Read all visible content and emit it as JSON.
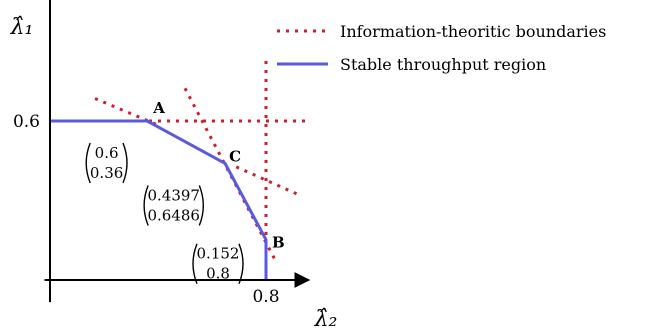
{
  "chart_data": {
    "type": "line",
    "xlabel": "λ̂₂",
    "ylabel": "λ̂₁",
    "xlim": [
      -0.0204,
      0.9524
    ],
    "ylim": [
      -0.0833,
      1.15
    ],
    "x_ticks": [
      {
        "value": 0.8,
        "label": "0.8"
      }
    ],
    "y_ticks": [
      {
        "value": 0.6,
        "label": "0.6"
      }
    ],
    "legend": {
      "position": "top-right",
      "entries": [
        {
          "label": "Information-theoritic boundaries",
          "style": "dotted",
          "color": "#cc1f2e"
        },
        {
          "label": "Stable throughput region",
          "style": "solid",
          "color": "#5a5ae0"
        }
      ]
    },
    "series": [
      {
        "name": "Stable throughput region",
        "color": "#5a5ae0",
        "style": "solid",
        "points": [
          [
            0,
            0.6
          ],
          [
            0.36,
            0.6
          ],
          [
            0.6486,
            0.4397
          ],
          [
            0.8,
            0.152
          ],
          [
            0.8,
            0
          ]
        ]
      },
      {
        "name": "Information-theoritic boundaries",
        "color": "#cc1f2e",
        "style": "dotted",
        "segments": [
          [
            [
              0,
              0.6
            ],
            [
              0.952,
              0.6
            ]
          ],
          [
            [
              0.8,
              0
            ],
            [
              0.8,
              0.845
            ]
          ],
          [
            [
              0.1667,
              0.685
            ],
            [
              0.3981,
              0.5854
            ]
          ],
          [
            [
              0.5,
              0.7233
            ],
            [
              0.8333,
              0.0767
            ]
          ],
          [
            [
              0.6898,
              0.427
            ],
            [
              0.9213,
              0.3216
            ]
          ]
        ]
      }
    ],
    "points": [
      {
        "label": "A",
        "x": 0.36,
        "y": 0.6,
        "vec_top": "0.6",
        "vec_bottom": "0.36"
      },
      {
        "label": "C",
        "x": 0.6486,
        "y": 0.4397,
        "vec_top": "0.4397",
        "vec_bottom": "0.6486"
      },
      {
        "label": "B",
        "x": 0.8,
        "y": 0.152,
        "vec_top": "0.152",
        "vec_bottom": "0.8"
      }
    ]
  }
}
